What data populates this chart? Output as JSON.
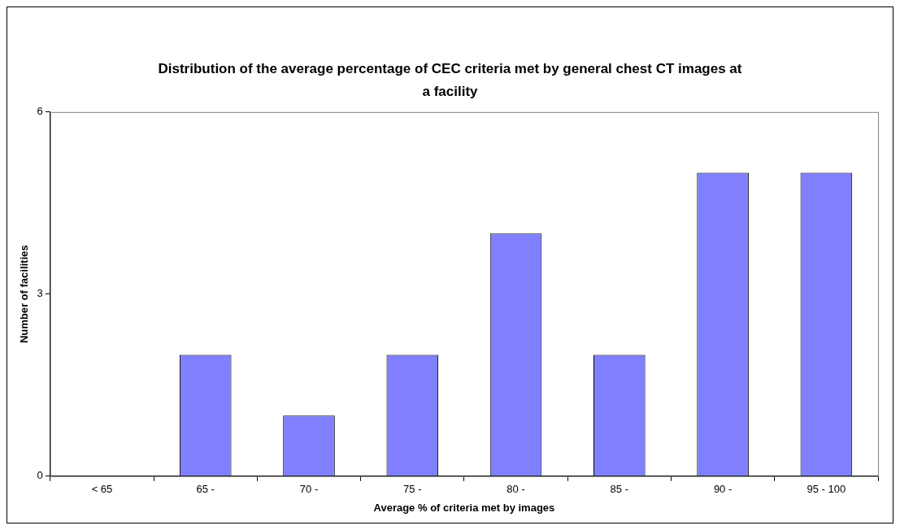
{
  "chart_data": {
    "type": "bar",
    "title": "Distribution of the average percentage of CEC criteria met by general chest CT images at a facility",
    "xlabel": "Average % of criteria met by images",
    "ylabel": "Number of facilities",
    "categories": [
      "< 65",
      "65 -",
      "70 -",
      "75 -",
      "80 -",
      "85 -",
      "90 -",
      "95 - 100"
    ],
    "values": [
      0,
      2,
      1,
      2,
      4,
      2,
      5,
      5
    ],
    "color": "#8080ff",
    "ylim": [
      0,
      6
    ],
    "yticks": [
      0,
      3,
      6
    ],
    "grid": false,
    "legend": false
  }
}
